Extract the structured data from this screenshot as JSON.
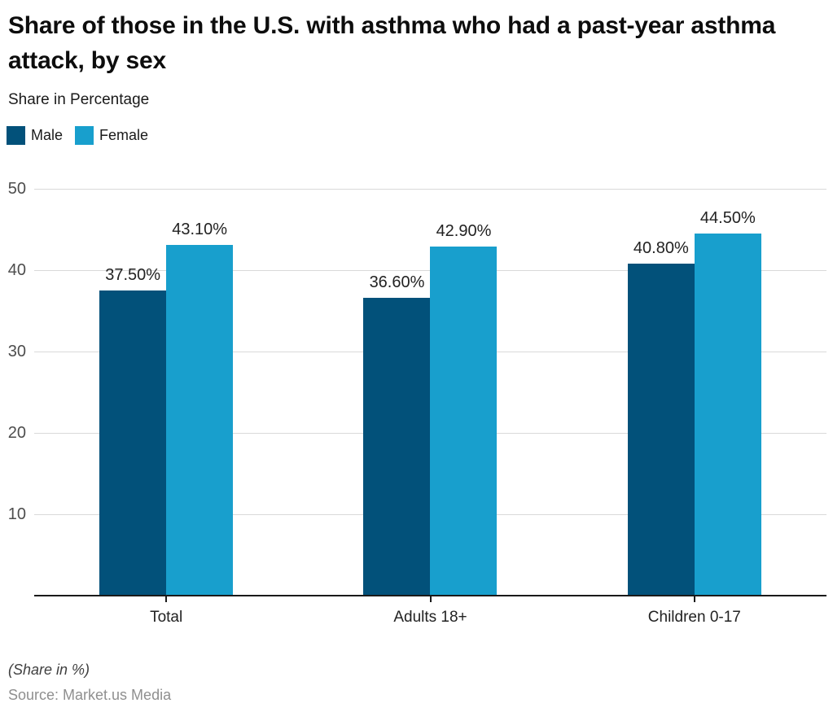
{
  "header": {
    "title": "Share of those in the U.S. with asthma who had a past-year asthma attack, by sex",
    "subtitle": "Share in Percentage"
  },
  "legend": [
    {
      "label": "Male",
      "color": "#02517a"
    },
    {
      "label": "Female",
      "color": "#189fcd"
    }
  ],
  "chart_data": {
    "type": "bar",
    "categories": [
      "Total",
      "Adults 18+",
      "Children 0-17"
    ],
    "series": [
      {
        "name": "Male",
        "color": "#02517a",
        "values": [
          37.5,
          36.6,
          40.8
        ],
        "data_labels": [
          "37.50%",
          "36.60%",
          "40.80%"
        ]
      },
      {
        "name": "Female",
        "color": "#189fcd",
        "values": [
          43.1,
          42.9,
          44.5
        ],
        "data_labels": [
          "43.10%",
          "42.90%",
          "44.50%"
        ]
      }
    ],
    "title": "Share of those in the U.S. with asthma who had a past-year asthma attack, by sex",
    "xlabel": "",
    "ylabel": "Share in Percentage",
    "ylim": [
      0,
      50
    ],
    "yticks": [
      10,
      20,
      30,
      40,
      50
    ],
    "grid": true,
    "legend_position": "top-left"
  },
  "footer": {
    "note": "(Share in %)",
    "source": "Source: Market.us Media"
  },
  "colors": {
    "grid": "#d9d9d9",
    "axis": "#1a1a1a",
    "ytick_label": "#4d4d4d",
    "value_label": "#222222",
    "source_text": "#8f8f8f"
  }
}
